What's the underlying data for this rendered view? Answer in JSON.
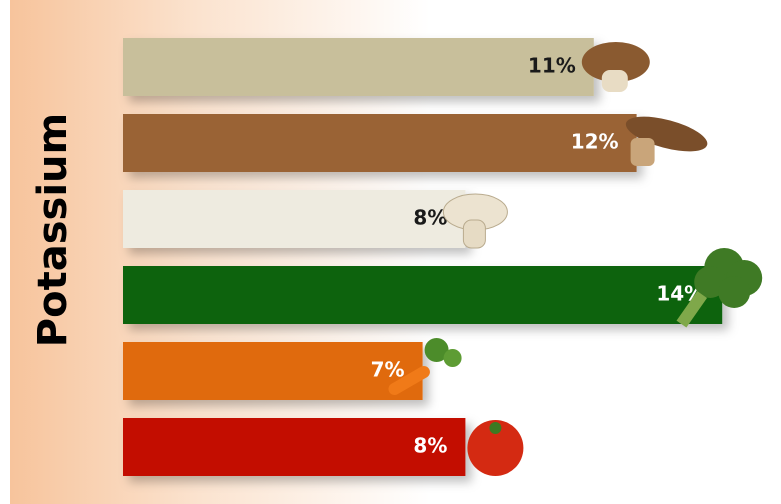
{
  "chart_data": {
    "type": "bar",
    "orientation": "horizontal",
    "title": "Potassium",
    "categories": [
      null,
      null,
      null,
      null,
      null,
      null
    ],
    "values": [
      11,
      12,
      8,
      14,
      7,
      8
    ],
    "value_labels": [
      "11%",
      "12%",
      "8%",
      "14%",
      "7%",
      "8%"
    ],
    "colors": [
      "#c8bf9b",
      "#9a6436",
      "#eeebe0",
      "#0b6408",
      "#e06a10",
      "#c30a00"
    ],
    "label_colors": [
      "#1a1a1a",
      "#ffffff",
      "#1a1a1a",
      "#ffffff",
      "#ffffff",
      "#ffffff"
    ]
  }
}
